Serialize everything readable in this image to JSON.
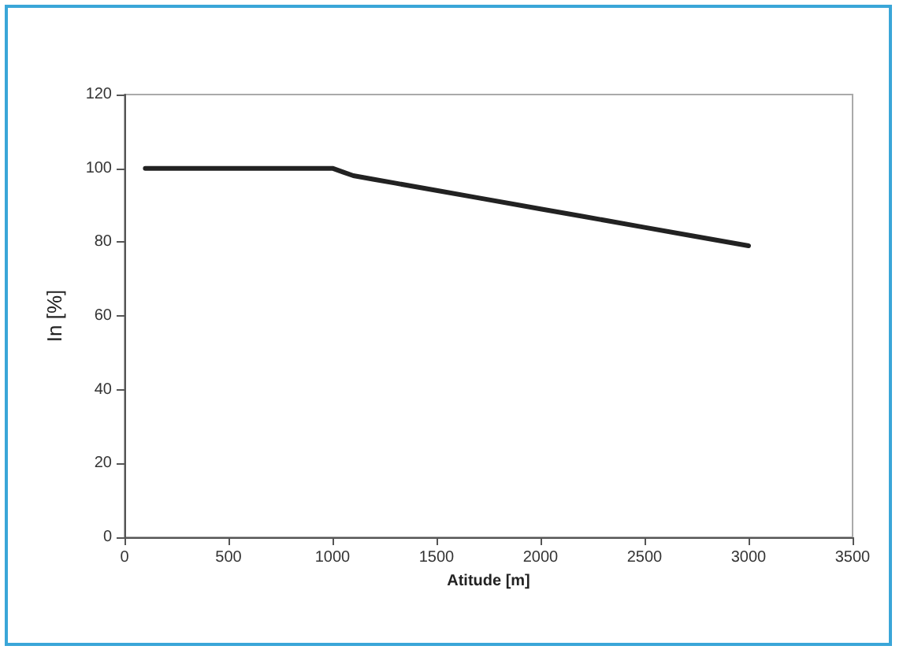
{
  "chart_data": {
    "type": "line",
    "xlabel": "Atitude [m]",
    "ylabel": "In [%]",
    "x": [
      100,
      1000,
      1050,
      1100,
      1200,
      1300,
      1500,
      1700,
      2000,
      2200,
      2500,
      2700,
      3000
    ],
    "series": [
      {
        "color": "#222222",
        "values": [
          100,
          100,
          99,
          98,
          97,
          96,
          94,
          92,
          89,
          87,
          84,
          82,
          79
        ]
      }
    ],
    "xlim": [
      0,
      3500
    ],
    "xticks": [
      0,
      500,
      1000,
      1500,
      2000,
      2500,
      3000,
      3500
    ],
    "ylim": [
      0,
      120
    ],
    "yticks": [
      0,
      20,
      40,
      60,
      80,
      100,
      120
    ],
    "grid": false,
    "marker": "none",
    "line_style": "solid"
  }
}
